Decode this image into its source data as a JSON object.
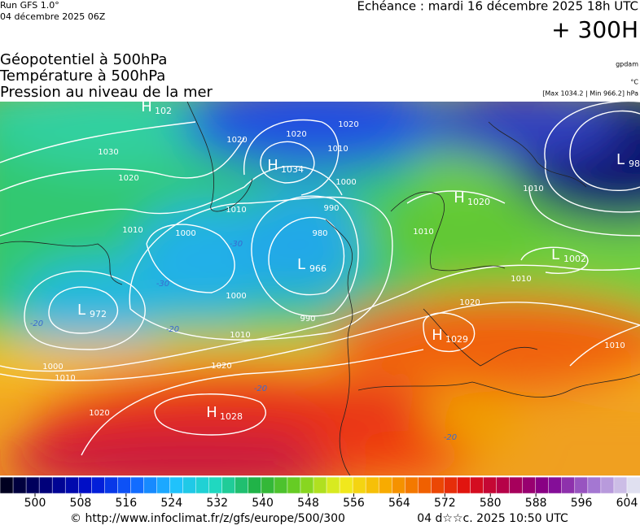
{
  "header": {
    "run": "Run GFS 1.0°",
    "run_date": "04 décembre 2025 06Z",
    "valid": "Echéance : mardi 16 décembre 2025 18h UTC",
    "lead": "+ 300H",
    "layers": [
      "Géopotentiel à 500hPa",
      "Température à 500hPa",
      "Pression au niveau de la mer"
    ],
    "units": [
      "gpdam",
      "°C",
      "[Max 1034.2 | Min 966.2] hPa"
    ]
  },
  "centers": [
    {
      "kind": "H",
      "value": "1034"
    },
    {
      "kind": "L",
      "value": "966"
    },
    {
      "kind": "L",
      "value": "972"
    },
    {
      "kind": "H",
      "value": "1028"
    },
    {
      "kind": "H",
      "value": "1029"
    },
    {
      "kind": "H",
      "value": "1020"
    },
    {
      "kind": "L",
      "value": "1002"
    },
    {
      "kind": "L",
      "value": "98"
    },
    {
      "kind": "H",
      "value": "102"
    }
  ],
  "isobar_labels": [
    "1030",
    "1020",
    "1010",
    "1000",
    "1000",
    "990",
    "1010",
    "1020",
    "1000",
    "1010",
    "1020",
    "1020",
    "1010",
    "1020",
    "1020",
    "1010",
    "1000",
    "990",
    "980",
    "1010",
    "1010",
    "1010",
    "1020",
    "1010"
  ],
  "temperature_labels": [
    "-30",
    "-30",
    "-20",
    "-20",
    "-20",
    "-20"
  ],
  "colorbar": {
    "ticks": [
      500,
      508,
      516,
      524,
      532,
      540,
      548,
      556,
      564,
      572,
      580,
      588,
      596,
      604
    ]
  },
  "footer": {
    "source": "© http://www.infoclimat.fr/z/gfs/europe/500/300",
    "generated": "04 d☆☆c. 2025 10:50 UTC"
  }
}
